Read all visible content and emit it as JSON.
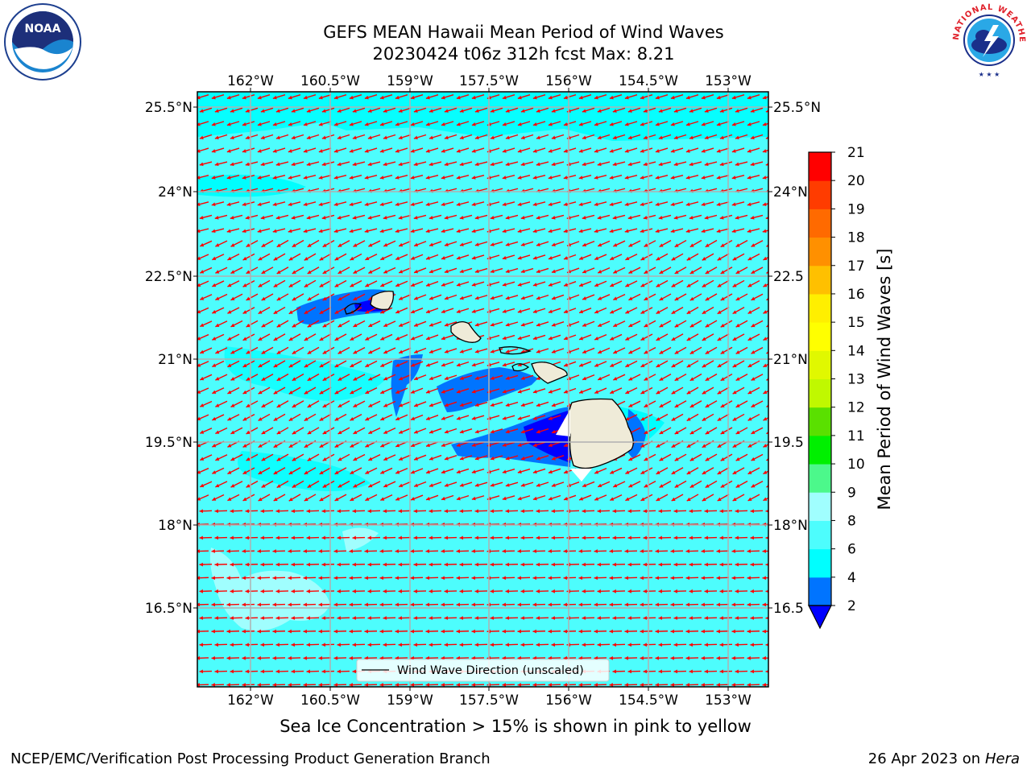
{
  "title": {
    "line1": "GEFS MEAN Hawaii Mean Period of Wind Waves",
    "line2": "20230424 t06z 312h fcst   Max: 8.21"
  },
  "subtitle": "Sea Ice Concentration > 15% is shown in pink to yellow",
  "footer": {
    "left": "NCEP/EMC/Verification Post Processing Product Generation Branch",
    "right_date": "26 Apr 2023 on ",
    "right_host": "Hera"
  },
  "logos": {
    "noaa_text": "NOAA",
    "nws_text": "NATIONAL WEATHER SERVICE"
  },
  "map": {
    "lon_ticks": [
      "162°W",
      "160.5°W",
      "159°W",
      "157.5°W",
      "156°W",
      "154.5°W",
      "153°W"
    ],
    "lat_ticks": [
      "25.5°N",
      "24°N",
      "22.5°N",
      "21°N",
      "19.5°N",
      "18°N",
      "16.5°N"
    ],
    "lat_ticks_right": [
      "25.5°N",
      "24°N",
      "22.5",
      "21°N",
      "19.5",
      "18°N",
      "16.5"
    ],
    "legend_label": "Wind Wave Direction (unscaled)",
    "background_color": "#4dfdfd",
    "arrow_color": "#ff0000",
    "land_color": "#efebd8"
  },
  "colorbar": {
    "label": "Mean Period of Wind Waves [s]",
    "ticks": [
      "2",
      "4",
      "6",
      "8",
      "9",
      "10",
      "11",
      "12",
      "13",
      "14",
      "15",
      "16",
      "17",
      "18",
      "19",
      "20",
      "21"
    ],
    "levels": [
      {
        "value": "2-4",
        "color": "#0074ff"
      },
      {
        "value": "4-6",
        "color": "#00fefe"
      },
      {
        "value": "6-8",
        "color": "#4dfdfd"
      },
      {
        "value": "8-9",
        "color": "#a0fefe"
      },
      {
        "value": "9-10",
        "color": "#4cf88b"
      },
      {
        "value": "10-11",
        "color": "#00f000"
      },
      {
        "value": "11-12",
        "color": "#5ae000"
      },
      {
        "value": "12-13",
        "color": "#c0f800"
      },
      {
        "value": "13-14",
        "color": "#e0f800"
      },
      {
        "value": "14-15",
        "color": "#ffff00"
      },
      {
        "value": "15-16",
        "color": "#ffef00"
      },
      {
        "value": "16-17",
        "color": "#ffc000"
      },
      {
        "value": "17-18",
        "color": "#ff9000"
      },
      {
        "value": "18-19",
        "color": "#ff6a00"
      },
      {
        "value": "19-20",
        "color": "#ff3c00"
      },
      {
        "value": "20-21",
        "color": "#ff0000"
      }
    ],
    "under_color": "#0000ff"
  }
}
